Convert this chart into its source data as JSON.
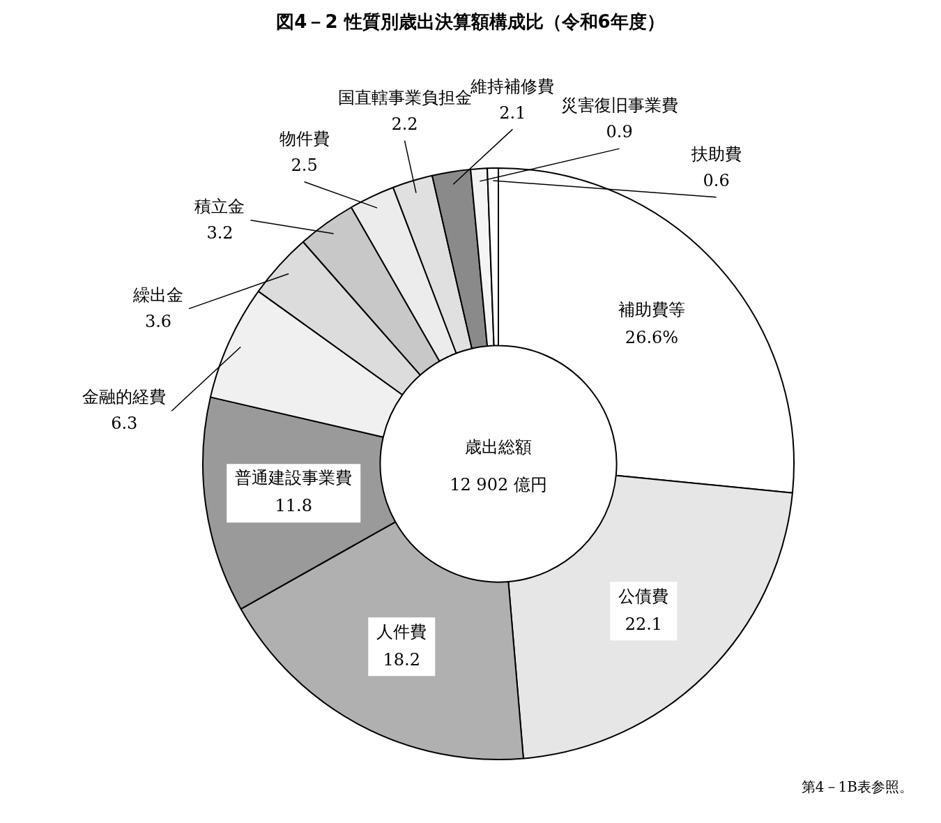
{
  "chart_data": {
    "type": "donut",
    "title": "図4－2 性質別歳出決算額構成比（令和6年度）",
    "categories": [
      "補助費等",
      "公債費",
      "人件費",
      "普通建設事業費",
      "金融的経費",
      "繰出金",
      "積立金",
      "物件費",
      "国直轄事業負担金",
      "維持補修費",
      "災害復旧事業費",
      "扶助費"
    ],
    "values": [
      26.6,
      22.1,
      18.2,
      11.8,
      6.3,
      3.6,
      3.2,
      2.5,
      2.2,
      2.1,
      0.9,
      0.6
    ],
    "value_labels": [
      "26.6%",
      "22.1",
      "18.2",
      "11.8",
      "6.3",
      "3.6",
      "3.2",
      "2.5",
      "2.2",
      "2.1",
      "0.9",
      "0.6"
    ],
    "colors": [
      "#ffffff",
      "#e6e6e6",
      "#b0b0b0",
      "#9a9a9a",
      "#f0f0f0",
      "#dcdcdc",
      "#c8c8c8",
      "#ececec",
      "#e0e0e0",
      "#8a8a8a",
      "#f4f4f4",
      "#ffffff"
    ],
    "annotations": [
      "歳出総額",
      "12 902 億円",
      "第4－1B表参照。"
    ],
    "legend": false
  }
}
